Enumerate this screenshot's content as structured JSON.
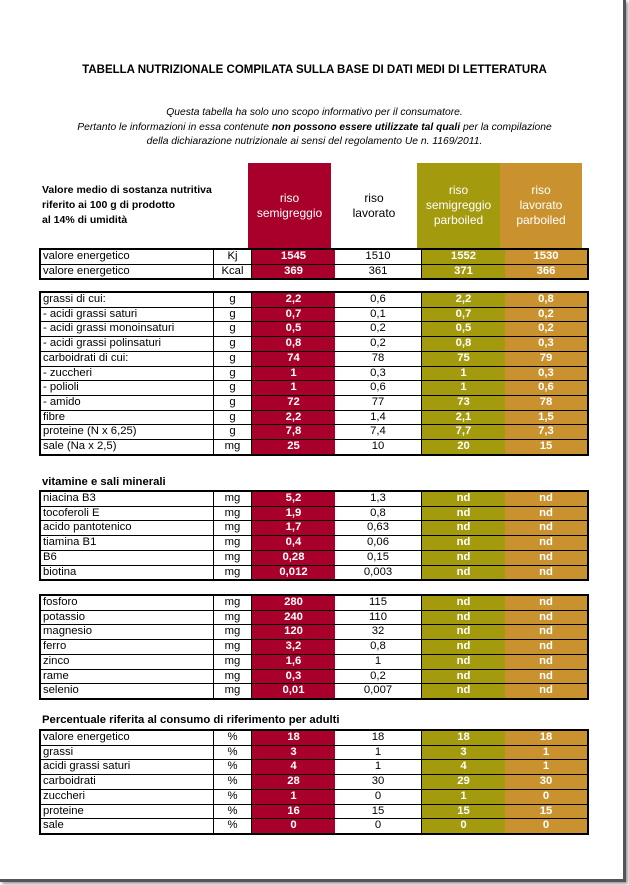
{
  "title": "TABELLA NUTRIZIONALE COMPILATA SULLA BASE DI DATI MEDI DI LETTERATURA",
  "intro": {
    "line1": "Questa tabella ha solo uno scopo informativo per il consumatore.",
    "line2a": "Pertanto le informazioni in essa contenute ",
    "line2b": "non possono essere utilizzate  tal quali",
    "line2c": " per la compilazione",
    "line3": "della dichiarazione nutrizionale ai sensi del regolamento Ue n. 1169/2011."
  },
  "header": {
    "label_lines": [
      "Valore medio di sostanza nutritiva",
      "riferito ai 100 g di prodotto",
      "al 14% di umidità"
    ],
    "columns": [
      {
        "lines": [
          "riso",
          "semigreggio"
        ],
        "color": "#a8002a"
      },
      {
        "lines": [
          "riso",
          "lavorato"
        ],
        "color": "#ffffff"
      },
      {
        "lines": [
          "riso",
          "semigreggio",
          "parboiled"
        ],
        "color": "#a39a0e"
      },
      {
        "lines": [
          "riso",
          "lavorato",
          "parboiled"
        ],
        "color": "#c9922e"
      }
    ]
  },
  "tables": {
    "energy": [
      [
        "valore energetico",
        "Kj",
        "1545",
        "1510",
        "1552",
        "1530"
      ],
      [
        "valore energetico",
        "Kcal",
        "369",
        "361",
        "371",
        "366"
      ]
    ],
    "macro": [
      [
        "grassi di cui:",
        "g",
        "2,2",
        "0,6",
        "2,2",
        "0,8"
      ],
      [
        " - acidi grassi saturi",
        "g",
        "0,7",
        "0,1",
        "0,7",
        "0,2"
      ],
      [
        " - acidi grassi monoinsaturi",
        "g",
        "0,5",
        "0,2",
        "0,5",
        "0,2"
      ],
      [
        " - acidi grassi polinsaturi",
        "g",
        "0,8",
        "0,2",
        "0,8",
        "0,3"
      ],
      [
        "carboidrati di cui:",
        "g",
        "74",
        "78",
        "75",
        "79"
      ],
      [
        " - zuccheri",
        "g",
        "1",
        "0,3",
        "1",
        "0,3"
      ],
      [
        " - polioli",
        "g",
        "1",
        "0,6",
        "1",
        "0,6"
      ],
      [
        " - amido",
        "g",
        "72",
        "77",
        "73",
        "78"
      ],
      [
        "fibre",
        "g",
        "2,2",
        "1,4",
        "2,1",
        "1,5"
      ],
      [
        "proteine (N x 6,25)",
        "g",
        "7,8",
        "7,4",
        "7,7",
        "7,3"
      ],
      [
        "sale (Na x 2,5)",
        "mg",
        "25",
        "10",
        "20",
        "15"
      ]
    ],
    "vitamins": [
      [
        "niacina B3",
        "mg",
        "5,2",
        "1,3",
        "nd",
        "nd"
      ],
      [
        "tocoferoli E",
        "mg",
        "1,9",
        "0,8",
        "nd",
        "nd"
      ],
      [
        "acido pantotenico",
        "mg",
        "1,7",
        "0,63",
        "nd",
        "nd"
      ],
      [
        "tiamina B1",
        "mg",
        "0,4",
        "0,06",
        "nd",
        "nd"
      ],
      [
        "B6",
        "mg",
        "0,28",
        "0,15",
        "nd",
        "nd"
      ],
      [
        "biotina",
        "mg",
        "0,012",
        "0,003",
        "nd",
        "nd"
      ]
    ],
    "minerals": [
      [
        "fosforo",
        "mg",
        "280",
        "115",
        "nd",
        "nd"
      ],
      [
        "potassio",
        "mg",
        "240",
        "110",
        "nd",
        "nd"
      ],
      [
        "magnesio",
        "mg",
        "120",
        "32",
        "nd",
        "nd"
      ],
      [
        "ferro",
        "mg",
        "3,2",
        "0,8",
        "nd",
        "nd"
      ],
      [
        "zinco",
        "mg",
        "1,6",
        "1",
        "nd",
        "nd"
      ],
      [
        "rame",
        "mg",
        "0,3",
        "0,2",
        "nd",
        "nd"
      ],
      [
        "selenio",
        "mg",
        "0,01",
        "0,007",
        "nd",
        "nd"
      ]
    ],
    "percent": [
      [
        "valore energetico",
        "%",
        "18",
        "18",
        "18",
        "18"
      ],
      [
        "grassi",
        "%",
        "3",
        "1",
        "3",
        "1"
      ],
      [
        "acidi grassi saturi",
        "%",
        "4",
        "1",
        "4",
        "1"
      ],
      [
        "carboidrati",
        "%",
        "28",
        "30",
        "29",
        "30"
      ],
      [
        "zuccheri",
        "%",
        "1",
        "0",
        "1",
        "0"
      ],
      [
        "proteine",
        "%",
        "16",
        "15",
        "15",
        "15"
      ],
      [
        "sale",
        "%",
        "0",
        "0",
        "0",
        "0"
      ]
    ]
  },
  "sections": {
    "vitamins": "vitamine e sali minerali",
    "percent": "Percentuale riferita al consumo di riferimento per adulti"
  }
}
